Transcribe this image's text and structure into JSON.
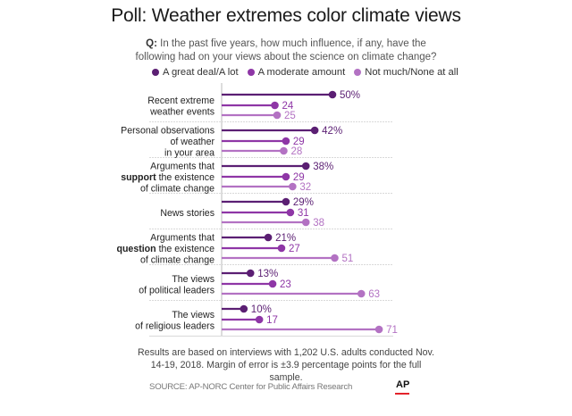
{
  "header": {
    "title": "Poll: Weather extremes color climate views",
    "question_prefix": "Q:",
    "question": "In the past five years, how much influence, if any, have the following had on your views about the science on climate change?"
  },
  "colors": {
    "great_deal": "#5b1f73",
    "moderate": "#8e36a6",
    "not_much": "#b372c3",
    "divider": "#d9d9d9",
    "axis": "#bbbbbb",
    "ap_red": "#e3232b"
  },
  "chart_data": {
    "type": "lollipop",
    "title": "Poll: Weather extremes color climate views",
    "legend": [
      "A great deal/A lot",
      "A moderate amount",
      "Not much/None at all"
    ],
    "legend_position": "top",
    "unit": "%",
    "xlim": [
      0,
      100
    ],
    "categories": [
      {
        "lines": [
          "Recent extreme",
          "weather events"
        ],
        "bold_word": null
      },
      {
        "lines": [
          "Personal observations",
          "of weather",
          "in your area"
        ],
        "bold_word": null
      },
      {
        "lines": [
          "Arguments that",
          "support the existence",
          "of climate change"
        ],
        "bold_word": "support"
      },
      {
        "lines": [
          "News stories"
        ],
        "bold_word": null
      },
      {
        "lines": [
          "Arguments that",
          "question the existence",
          "of climate change"
        ],
        "bold_word": "question"
      },
      {
        "lines": [
          "The views",
          "of political leaders"
        ],
        "bold_word": null
      },
      {
        "lines": [
          "The views",
          "of religious leaders"
        ],
        "bold_word": null
      }
    ],
    "series": [
      {
        "name": "A great deal/A lot",
        "values": [
          50,
          42,
          38,
          29,
          21,
          13,
          10
        ]
      },
      {
        "name": "A moderate amount",
        "values": [
          24,
          29,
          29,
          31,
          27,
          23,
          17
        ]
      },
      {
        "name": "Not much/None at all",
        "values": [
          25,
          28,
          32,
          38,
          51,
          63,
          71
        ]
      }
    ],
    "first_series_shows_percent_sign": true
  },
  "footer": {
    "note": "Results are based on interviews with 1,202 U.S. adults conducted Nov. 14-19, 2018. Margin of error is ±3.9 percentage points for the full sample.",
    "source": "SOURCE: AP-NORC Center for Public Affairs Research",
    "logo": "AP"
  }
}
